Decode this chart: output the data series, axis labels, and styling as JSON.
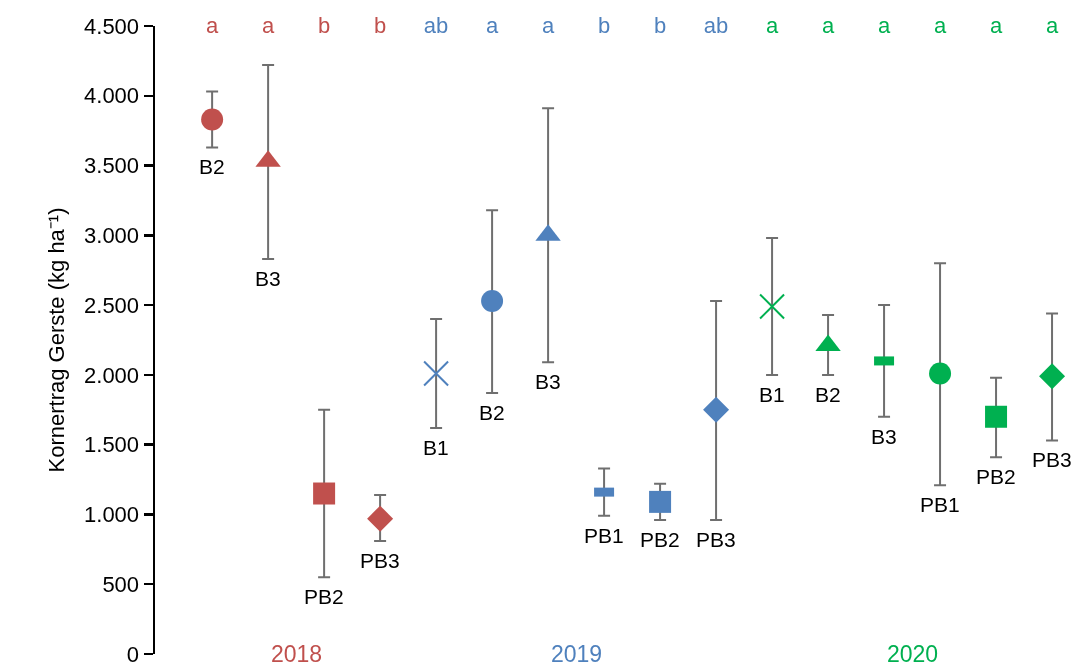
{
  "chart_data": {
    "type": "scatter",
    "ylabel": "Kornertrag Gerste (kg ha⁻¹)",
    "categories": [
      "a",
      "a",
      "b",
      "b",
      "ab",
      "a",
      "a",
      "b",
      "b",
      "ab",
      "a",
      "a",
      "a",
      "a",
      "a",
      "a"
    ],
    "ylim": [
      0,
      4500
    ],
    "yticks": [
      0,
      500,
      {
        "value": 1000,
        "label": "1.000"
      },
      {
        "value": 1500,
        "label": "1.500"
      },
      {
        "value": 2000,
        "label": "2.000"
      },
      {
        "value": 2500,
        "label": "2.500"
      },
      {
        "value": 3000,
        "label": "3.000"
      },
      {
        "value": 3500,
        "label": "3.500"
      },
      {
        "value": 4000,
        "label": "4.000"
      },
      {
        "value": 4500,
        "label": "4.500"
      }
    ],
    "grid": false,
    "series": [
      {
        "name": "2018",
        "color": "#c0504d",
        "marker": [
          "circle",
          "triangle",
          "square",
          "diamond",
          null,
          null,
          null,
          null,
          null,
          null,
          null,
          null,
          null,
          null,
          null,
          null
        ],
        "values": [
          3830,
          3530,
          1150,
          970,
          null,
          null,
          null,
          null,
          null,
          null,
          null,
          null,
          null,
          null,
          null,
          null
        ],
        "errors": [
          [
            3630,
            4030
          ],
          [
            2830,
            4220
          ],
          [
            550,
            1750
          ],
          [
            810,
            1140
          ],
          null,
          null,
          null,
          null,
          null,
          null,
          null,
          null,
          null,
          null,
          null,
          null
        ]
      },
      {
        "name": "2019",
        "color": "#4f81bd",
        "marker": [
          null,
          null,
          null,
          null,
          "cross",
          "circle",
          "triangle",
          "dash",
          "square",
          "diamond",
          null,
          null,
          null,
          null,
          null,
          null
        ],
        "values": [
          null,
          null,
          null,
          null,
          2010,
          2530,
          3000,
          1160,
          1090,
          1750,
          null,
          null,
          null,
          null,
          null,
          null
        ],
        "errors": [
          null,
          null,
          null,
          null,
          [
            1620,
            2400
          ],
          [
            1870,
            3180
          ],
          [
            2090,
            3910
          ],
          [
            990,
            1330
          ],
          [
            960,
            1220
          ],
          [
            960,
            2530
          ],
          null,
          null,
          null,
          null,
          null,
          null
        ]
      },
      {
        "name": "2020",
        "color": "#00b050",
        "marker": [
          null,
          null,
          null,
          null,
          null,
          null,
          null,
          null,
          null,
          null,
          "cross",
          "triangle",
          "dash",
          "circle",
          "square",
          "diamond"
        ],
        "values": [
          null,
          null,
          null,
          null,
          null,
          null,
          null,
          null,
          null,
          null,
          2490,
          2210,
          2100,
          2010,
          1700,
          1990
        ],
        "errors": [
          null,
          null,
          null,
          null,
          null,
          null,
          null,
          null,
          null,
          null,
          [
            2000,
            2980
          ],
          [
            2000,
            2430
          ],
          [
            1700,
            2500
          ],
          [
            1210,
            2800
          ],
          [
            1410,
            1980
          ],
          [
            1530,
            2440
          ]
        ]
      }
    ],
    "annotations": [
      "B2",
      "B3",
      "PB2",
      "PB3",
      "B1",
      "B2",
      "B3",
      "PB1",
      "PB2",
      "PB3",
      "B1",
      "B2",
      "B3",
      "PB1",
      "PB2",
      "PB3"
    ]
  }
}
